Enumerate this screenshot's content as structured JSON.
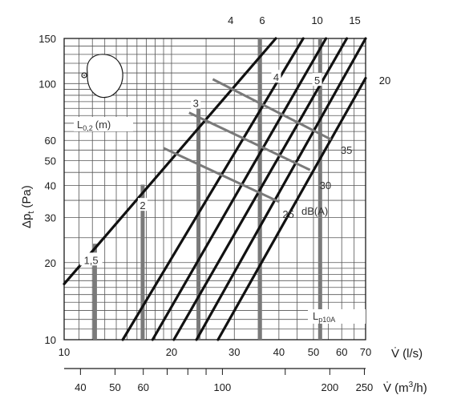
{
  "chart_data": {
    "type": "line",
    "x_scale": "log",
    "y_scale": "log",
    "x_range_ls": [
      10,
      70
    ],
    "y_range_pa": [
      10,
      150
    ],
    "x_ticks_ls": [
      10,
      20,
      30,
      40,
      50,
      60,
      70
    ],
    "x_tick_labels_ls": [
      "10",
      "20",
      "30",
      "40",
      "50",
      "60",
      "70"
    ],
    "x_ticks_m3h": [
      40,
      50,
      60,
      100,
      200,
      250
    ],
    "x_tick_labels_m3h": [
      "40",
      "50",
      "60",
      "100",
      "200",
      "250"
    ],
    "y_ticks": [
      10,
      20,
      30,
      40,
      50,
      60,
      100,
      150
    ],
    "y_tick_labels": [
      "10",
      "20",
      "30",
      "40",
      "50",
      "60",
      "100",
      "150"
    ],
    "xlabel_ls": "V̇ (l/s)",
    "xlabel_m3h_base": "V̇ (m",
    "xlabel_m3h_sup": "3",
    "xlabel_m3h_tail": "/h)",
    "ylabel_base": "Δp",
    "ylabel_sub": "t",
    "ylabel_unit": "(Pa)",
    "grid": true,
    "diagonals": [
      {
        "x": [
          10,
          39.2
        ],
        "y": [
          16.5,
          150
        ]
      },
      {
        "x": [
          14.6,
          46.8
        ],
        "y": [
          10,
          150
        ]
      },
      {
        "x": [
          17.7,
          54.2
        ],
        "y": [
          10,
          150
        ]
      },
      {
        "x": [
          20.3,
          62.0
        ],
        "y": [
          10,
          150
        ]
      },
      {
        "x": [
          23.5,
          70.0
        ],
        "y": [
          10,
          150
        ]
      },
      {
        "x": [
          27.0,
          70.0
        ],
        "y": [
          10,
          105
        ]
      }
    ],
    "throw_marks": [
      {
        "label": "1,5",
        "x": 12.2,
        "y_from": 10,
        "y_to": 23.7
      },
      {
        "label": "2",
        "x": 16.6,
        "y_from": 10,
        "y_to": 40.3
      },
      {
        "label": "3",
        "x": 23.8,
        "y_from": 10,
        "y_to": 83.5
      },
      {
        "label": "4",
        "x": 35.4,
        "y_from": 10,
        "y_to": 150
      },
      {
        "label": "5",
        "x": 52.2,
        "y_from": 10,
        "y_to": 150
      }
    ],
    "throw_labels": [
      {
        "text": "1,5",
        "x": 11.9,
        "y": 20.5
      },
      {
        "text": "2",
        "x": 16.6,
        "y": 33.5
      },
      {
        "text": "3",
        "x": 23.4,
        "y": 84
      },
      {
        "text": "4",
        "x": 39.3,
        "y": 106
      },
      {
        "text": "5",
        "x": 51.2,
        "y": 103
      }
    ],
    "top_labels": [
      {
        "text": "4",
        "x": 29.3,
        "y": 150
      },
      {
        "text": "6",
        "x": 35.9,
        "y": 150
      },
      {
        "text": "10",
        "x": 51.2,
        "y": 150
      },
      {
        "text": "15",
        "x": 65.3,
        "y": 150
      }
    ],
    "right_label": {
      "text": "20",
      "y": 103
    },
    "noise_lines": [
      {
        "label": "35",
        "x": [
          26.1,
          56.0
        ],
        "y": [
          104,
          60.5
        ]
      },
      {
        "label": "30",
        "x": [
          22.4,
          48.9
        ],
        "y": [
          77,
          46
        ]
      },
      {
        "label": "25",
        "x": [
          19.0,
          40.1
        ],
        "y": [
          56,
          34.5
        ]
      }
    ],
    "noise_unit": "dB(A)",
    "throw_label": "L",
    "throw_label_sub": "0,2",
    "throw_label_unit": "(m)",
    "sound_label": "L",
    "sound_label_sub": "p10A"
  }
}
